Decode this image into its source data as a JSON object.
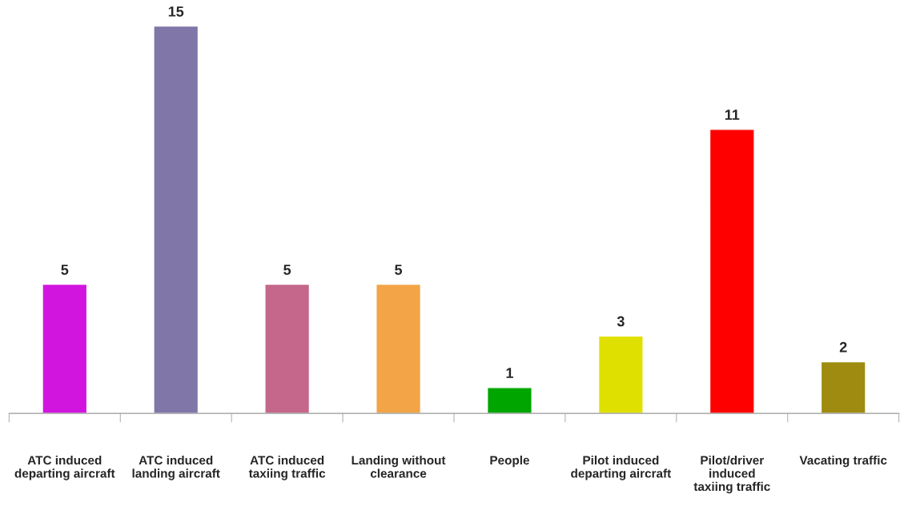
{
  "chart_data": {
    "type": "bar",
    "categories": [
      "ATC induced\ndeparting aircraft",
      "ATC induced\nlanding aircraft",
      "ATC induced\ntaxiing traffic",
      "Landing without\nclearance",
      "People",
      "Pilot induced\ndeparting aircraft",
      "Pilot/driver\ninduced\ntaxiing traffic",
      "Vacating traffic"
    ],
    "values": [
      5,
      15,
      5,
      5,
      1,
      3,
      11,
      2
    ],
    "colors": [
      "#d214df",
      "#8076a8",
      "#c4678a",
      "#f2a446",
      "#00a500",
      "#e0e000",
      "#ff0000",
      "#9e8b10"
    ],
    "data_labels": true,
    "tick_labels": "x",
    "grid": false,
    "legend": false
  }
}
